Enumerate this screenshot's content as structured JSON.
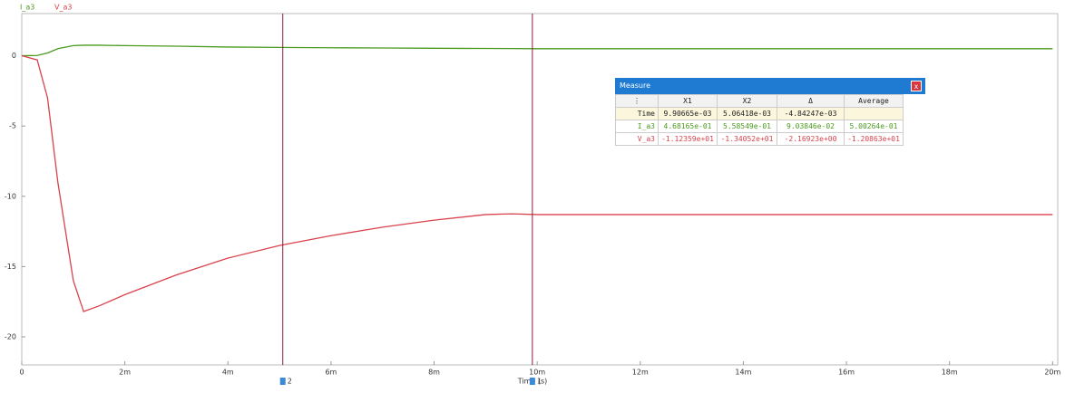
{
  "chart_data": {
    "type": "line",
    "x_label": "Time (s)",
    "x": [
      0,
      0.0003,
      0.0005,
      0.0007,
      0.001,
      0.0012,
      0.0015,
      0.002,
      0.003,
      0.004,
      0.005,
      0.006,
      0.007,
      0.008,
      0.009,
      0.0095,
      0.01,
      0.012,
      0.014,
      0.016,
      0.018,
      0.02
    ],
    "series": [
      {
        "name": "I_a3",
        "color": "#4a9a1e",
        "values": [
          0,
          0.02,
          0.2,
          0.5,
          0.72,
          0.75,
          0.75,
          0.72,
          0.68,
          0.62,
          0.59,
          0.57,
          0.55,
          0.53,
          0.52,
          0.51,
          0.5,
          0.5,
          0.5,
          0.5,
          0.5,
          0.5
        ]
      },
      {
        "name": "V_a3",
        "color": "#d9434d",
        "values": [
          0,
          -0.3,
          -3,
          -9,
          -16,
          -18.2,
          -17.8,
          -17,
          -15.6,
          -14.4,
          -13.5,
          -12.8,
          -12.2,
          -11.7,
          -11.3,
          -11.25,
          -11.3,
          -11.3,
          -11.3,
          -11.3,
          -11.3,
          -11.3
        ]
      }
    ],
    "xlim": [
      0,
      0.0201
    ],
    "xticks": [
      0,
      {
        "value": 0.002,
        "label": "2m"
      },
      {
        "value": 0.004,
        "label": "4m"
      },
      {
        "value": 0.006,
        "label": "6m"
      },
      {
        "value": 0.008,
        "label": "8m"
      },
      {
        "value": 0.01,
        "label": "10m"
      },
      {
        "value": 0.012,
        "label": "12m"
      },
      {
        "value": 0.014,
        "label": "14m"
      },
      {
        "value": 0.016,
        "label": "16m"
      },
      {
        "value": 0.018,
        "label": "18m"
      },
      {
        "value": 0.02,
        "label": "20m"
      }
    ],
    "ylim": [
      -22,
      3
    ],
    "yticks": [
      0,
      -5,
      -10,
      -15,
      -20
    ],
    "cursors": [
      {
        "label": "1",
        "value": 0.00990665
      },
      {
        "label": "2",
        "value": 0.00506418
      }
    ],
    "cursor_color": "#8b1a3a"
  },
  "measure": {
    "title": "Measure",
    "close": "x",
    "columns": [
      "X1",
      "X2",
      "Δ",
      "Average"
    ],
    "rows": [
      {
        "label": "Time",
        "cells": [
          "9.90665e-03",
          "5.06418e-03",
          "-4.84247e-03"
        ]
      },
      {
        "label": "I_a3",
        "cells": [
          "4.68165e-01",
          "5.58549e-01",
          "9.03846e-02",
          "5.00264e-01"
        ]
      },
      {
        "label": "V_a3",
        "cells": [
          "-1.12359e+01",
          "-1.34052e+01",
          "-2.16923e+00",
          "-1.20863e+01"
        ]
      }
    ]
  }
}
